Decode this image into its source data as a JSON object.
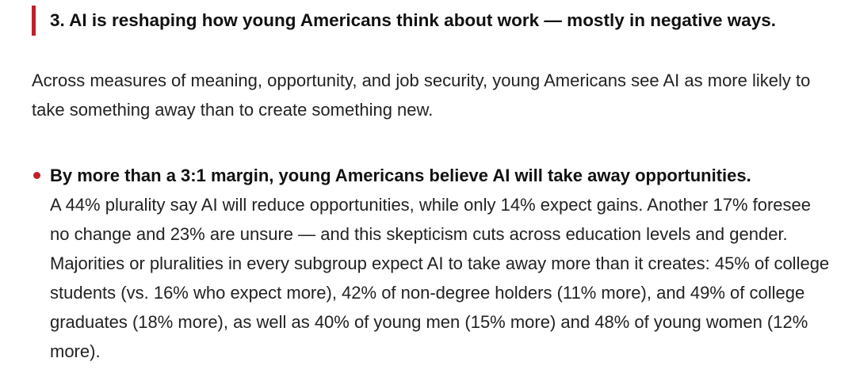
{
  "heading": "3. AI is reshaping how young Americans think about work — mostly in negative ways.",
  "intro": "Across measures of meaning, opportunity, and job security, young Americans see AI as more likely to take something away than to create something new.",
  "bullets": [
    {
      "lead": "By more than a 3:1 margin, young Americans believe AI will take away opportunities.",
      "text": "A 44% plurality say AI will reduce opportunities, while only 14% expect gains. Another 17% foresee no change and 23% are unsure — and this skepticism cuts across education levels and gender. Majorities or pluralities in every subgroup expect AI to take away more than it creates: 45% of college students (vs. 16% who expect more), 42% of non-degree holders (11% more), and 49% of college graduates (18% more), as well as 40% of young men (15% more) and 48% of young women (12% more)."
    }
  ]
}
